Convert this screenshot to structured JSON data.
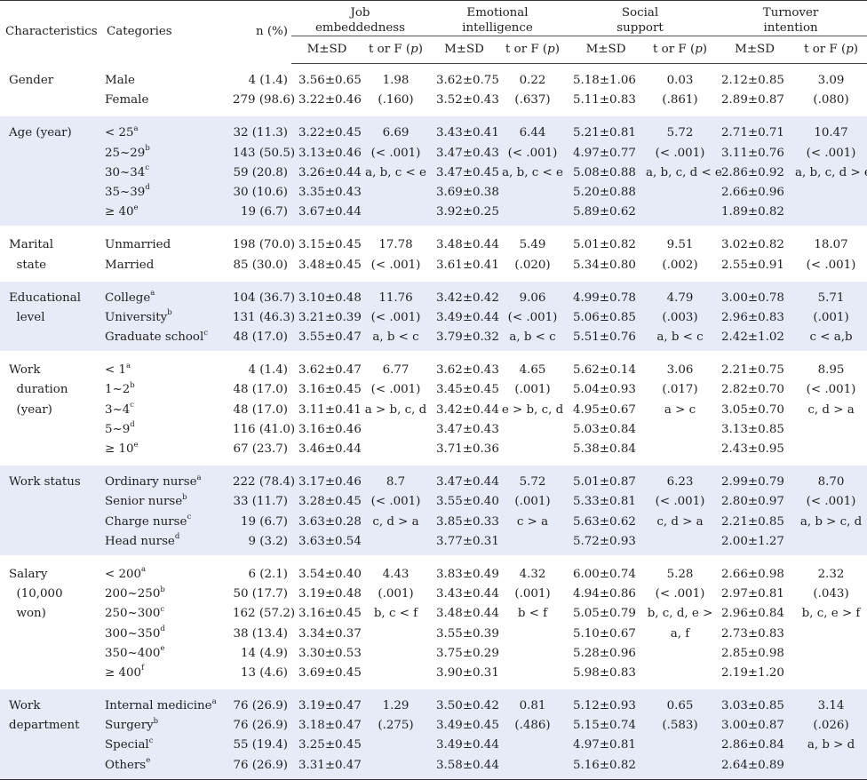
{
  "header": {
    "characteristics": "Characteristics",
    "categories": "Categories",
    "n_pct": "n (%)",
    "groups": [
      {
        "line1": "Job",
        "line2": "embeddedness"
      },
      {
        "line1": "Emotional",
        "line2": "intelligence"
      },
      {
        "line1": "Social",
        "line2": "support"
      },
      {
        "line1": "Turnover",
        "line2": "intention"
      }
    ],
    "msd": "M±SD",
    "tf_prefix": "t or F (",
    "tf_p": "p",
    "tf_suffix": ")"
  },
  "sections": [
    {
      "label_lines": [
        "Gender"
      ],
      "categories": [
        {
          "name": "Male",
          "sup": ""
        },
        {
          "name": "Female",
          "sup": ""
        }
      ],
      "n": [
        "4 (1.4)",
        "279 (98.6)"
      ],
      "job": [
        "3.56±0.65",
        "3.22±0.46"
      ],
      "job_tf": [
        "1.98",
        "(.160)"
      ],
      "ei": [
        "3.62±0.75",
        "3.52±0.43"
      ],
      "ei_tf": [
        "0.22",
        "(.637)"
      ],
      "ss": [
        "5.18±1.06",
        "5.11±0.83"
      ],
      "ss_tf": [
        "0.03",
        "(.861)"
      ],
      "ti": [
        "2.12±0.85",
        "2.89±0.87"
      ],
      "ti_tf": [
        "3.09",
        "(.080)"
      ]
    },
    {
      "label_lines": [
        "Age (year)"
      ],
      "categories": [
        {
          "name": "< 25",
          "sup": "a"
        },
        {
          "name": "25~29",
          "sup": "b"
        },
        {
          "name": "30~34",
          "sup": "c"
        },
        {
          "name": "35~39",
          "sup": "d"
        },
        {
          "name": "≥ 40",
          "sup": "e"
        }
      ],
      "n": [
        "32 (11.3)",
        "143 (50.5)",
        "59 (20.8)",
        "30 (10.6)",
        "19 (6.7)"
      ],
      "job": [
        "3.22±0.45",
        "3.13±0.46",
        "3.26±0.44",
        "3.35±0.43",
        "3.67±0.44"
      ],
      "job_tf": [
        "6.69",
        "(< .001)",
        "a, b, c < e"
      ],
      "ei": [
        "3.43±0.41",
        "3.47±0.43",
        "3.47±0.45",
        "3.69±0.38",
        "3.92±0.25"
      ],
      "ei_tf": [
        "6.44",
        "(< .001)",
        "a, b, c < e"
      ],
      "ss": [
        "5.21±0.81",
        "4.97±0.77",
        "5.08±0.88",
        "5.20±0.88",
        "5.89±0.62"
      ],
      "ss_tf": [
        "5.72",
        "(< .001)",
        "a, b, c, d < e"
      ],
      "ti": [
        "2.71±0.71",
        "3.11±0.76",
        "2.86±0.92",
        "2.66±0.96",
        "1.89±0.82"
      ],
      "ti_tf": [
        "10.47",
        "(< .001)",
        "a, b, c, d > e"
      ]
    },
    {
      "label_lines": [
        "Marital",
        "  state"
      ],
      "categories": [
        {
          "name": "Unmarried",
          "sup": ""
        },
        {
          "name": "Married",
          "sup": ""
        }
      ],
      "n": [
        "198 (70.0)",
        "85 (30.0)"
      ],
      "job": [
        "3.15±0.45",
        "3.48±0.45"
      ],
      "job_tf": [
        "17.78",
        "(< .001)"
      ],
      "ei": [
        "3.48±0.44",
        "3.61±0.41"
      ],
      "ei_tf": [
        "5.49",
        "(.020)"
      ],
      "ss": [
        "5.01±0.82",
        "5.34±0.80"
      ],
      "ss_tf": [
        "9.51",
        "(.002)"
      ],
      "ti": [
        "3.02±0.82",
        "2.55±0.91"
      ],
      "ti_tf": [
        "18.07",
        "(< .001)"
      ]
    },
    {
      "label_lines": [
        "Educational",
        "  level"
      ],
      "categories": [
        {
          "name": "College",
          "sup": "a"
        },
        {
          "name": "University",
          "sup": "b"
        },
        {
          "name": "Graduate school",
          "sup": "c"
        }
      ],
      "n": [
        "104 (36.7)",
        "131 (46.3)",
        "48 (17.0)"
      ],
      "job": [
        "3.10±0.48",
        "3.21±0.39",
        "3.55±0.47"
      ],
      "job_tf": [
        "11.76",
        "(< .001)",
        "a, b < c"
      ],
      "ei": [
        "3.42±0.42",
        "3.49±0.44",
        "3.79±0.32"
      ],
      "ei_tf": [
        "9.06",
        "(< .001)",
        "a, b < c"
      ],
      "ss": [
        "4.99±0.78",
        "5.06±0.85",
        "5.51±0.76"
      ],
      "ss_tf": [
        "4.79",
        "(.003)",
        "a, b < c"
      ],
      "ti": [
        "3.00±0.78",
        "2.96±0.83",
        "2.42±1.02"
      ],
      "ti_tf": [
        "5.71",
        "(.001)",
        "c < a,b"
      ]
    },
    {
      "label_lines": [
        "Work",
        "  duration",
        "  (year)"
      ],
      "categories": [
        {
          "name": "< 1",
          "sup": "a"
        },
        {
          "name": "1~2",
          "sup": "b"
        },
        {
          "name": "3~4",
          "sup": "c"
        },
        {
          "name": "5~9",
          "sup": "d"
        },
        {
          "name": "≥ 10",
          "sup": "e"
        }
      ],
      "n": [
        "4 (1.4)",
        "48 (17.0)",
        "48 (17.0)",
        "116 (41.0)",
        "67 (23.7)"
      ],
      "job": [
        "3.62±0.47",
        "3.16±0.45",
        "3.11±0.41",
        "3.16±0.46",
        "3.46±0.44"
      ],
      "job_tf": [
        "6.77",
        "(< .001)",
        "a > b, c, d"
      ],
      "ei": [
        "3.62±0.43",
        "3.45±0.45",
        "3.42±0.44",
        "3.47±0.43",
        "3.71±0.36"
      ],
      "ei_tf": [
        "4.65",
        "(.001)",
        "e > b, c, d"
      ],
      "ss": [
        "5.62±0.14",
        "5.04±0.93",
        "4.95±0.67",
        "5.03±0.84",
        "5.38±0.84"
      ],
      "ss_tf": [
        "3.06",
        "(.017)",
        "a > c"
      ],
      "ti": [
        "2.21±0.75",
        "2.82±0.70",
        "3.05±0.70",
        "3.13±0.85",
        "2.43±0.95"
      ],
      "ti_tf": [
        "8.95",
        "(< .001)",
        "c, d > a"
      ]
    },
    {
      "label_lines": [
        "Work status"
      ],
      "categories": [
        {
          "name": "Ordinary nurse",
          "sup": "a"
        },
        {
          "name": "Senior nurse",
          "sup": "b"
        },
        {
          "name": "Charge nurse",
          "sup": "c"
        },
        {
          "name": "Head nurse",
          "sup": "d"
        }
      ],
      "n": [
        "222 (78.4)",
        "33 (11.7)",
        "19 (6.7)",
        "9 (3.2)"
      ],
      "job": [
        "3.17±0.46",
        "3.28±0.45",
        "3.63±0.28",
        "3.63±0.54"
      ],
      "job_tf": [
        "8.7",
        "(< .001)",
        "c, d > a"
      ],
      "ei": [
        "3.47±0.44",
        "3.55±0.40",
        "3.85±0.33",
        "3.77±0.31"
      ],
      "ei_tf": [
        "5.72",
        "(.001)",
        "c > a"
      ],
      "ss": [
        "5.01±0.87",
        "5.33±0.81",
        "5.63±0.62",
        "5.72±0.93"
      ],
      "ss_tf": [
        "6.23",
        "(< .001)",
        "c, d > a"
      ],
      "ti": [
        "2.99±0.79",
        "2.80±0.97",
        "2.21±0.85",
        "2.00±1.27"
      ],
      "ti_tf": [
        "8.70",
        "(< .001)",
        "a, b > c, d"
      ]
    },
    {
      "label_lines": [
        "Salary",
        "  (10,000",
        "  won)"
      ],
      "categories": [
        {
          "name": "< 200",
          "sup": "a"
        },
        {
          "name": "200~250",
          "sup": "b"
        },
        {
          "name": "250~300",
          "sup": "c"
        },
        {
          "name": "300~350",
          "sup": "d"
        },
        {
          "name": "350~400",
          "sup": "e"
        },
        {
          "name": "≥ 400",
          "sup": "f"
        }
      ],
      "n": [
        "6 (2.1)",
        "50 (17.7)",
        "162 (57.2)",
        "38 (13.4)",
        "14 (4.9)",
        "13 (4.6)"
      ],
      "job": [
        "3.54±0.40",
        "3.19±0.48",
        "3.16±0.45",
        "3.34±0.37",
        "3.30±0.53",
        "3.69±0.45"
      ],
      "job_tf": [
        "4.43",
        "(.001)",
        "b, c < f"
      ],
      "ei": [
        "3.83±0.49",
        "3.43±0.44",
        "3.48±0.44",
        "3.55±0.39",
        "3.75±0.29",
        "3.90±0.31"
      ],
      "ei_tf": [
        "4.32",
        "(.001)",
        "b < f"
      ],
      "ss": [
        "6.00±0.74",
        "4.94±0.86",
        "5.05±0.79",
        "5.10±0.67",
        "5.28±0.96",
        "5.98±0.83"
      ],
      "ss_tf": [
        "5.28",
        "(< .001)",
        "b, c, d, e >",
        "a, f"
      ],
      "ti": [
        "2.66±0.98",
        "2.97±0.81",
        "2.96±0.84",
        "2.73±0.83",
        "2.85±0.98",
        "2.19±1.20"
      ],
      "ti_tf": [
        "2.32",
        "(.043)",
        "b, c, e > f"
      ]
    },
    {
      "label_lines": [
        "Work",
        "department"
      ],
      "categories": [
        {
          "name": "Internal medicine",
          "sup": "a"
        },
        {
          "name": "Surgery",
          "sup": "b"
        },
        {
          "name": "Special",
          "sup": "c"
        },
        {
          "name": "Others",
          "sup": "e"
        }
      ],
      "n": [
        "76 (26.9)",
        "76 (26.9)",
        "55 (19.4)",
        "76 (26.9)"
      ],
      "job": [
        "3.19±0.47",
        "3.18±0.47",
        "3.25±0.45",
        "3.31±0.47"
      ],
      "job_tf": [
        "1.29",
        "(.275)"
      ],
      "ei": [
        "3.50±0.42",
        "3.49±0.45",
        "3.49±0.44",
        "3.58±0.44"
      ],
      "ei_tf": [
        "0.81",
        "(.486)"
      ],
      "ss": [
        "5.12±0.93",
        "5.15±0.74",
        "4.97±0.81",
        "5.16±0.82"
      ],
      "ss_tf": [
        "0.65",
        "(.583)"
      ],
      "ti": [
        "3.03±0.85",
        "3.00±0.87",
        "2.86±0.84",
        "2.64±0.89"
      ],
      "ti_tf": [
        "3.14",
        "(.026)",
        "a, b > d"
      ]
    }
  ],
  "colors": {
    "band": "#e7ebf7",
    "rule": "#333333",
    "text": "#1f1f1f"
  }
}
